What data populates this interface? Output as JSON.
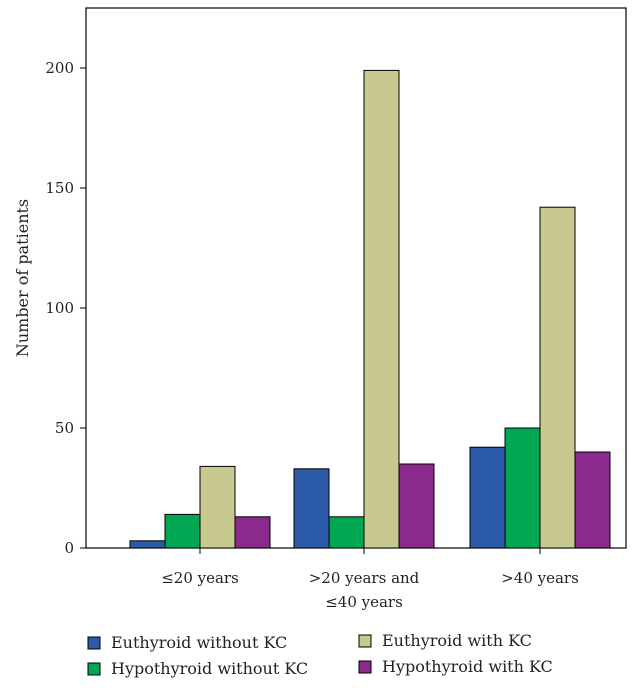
{
  "chart_data": {
    "type": "bar",
    "title": "",
    "xlabel": "",
    "ylabel": "Number of patients",
    "ylim": [
      0,
      225
    ],
    "yticks": [
      0,
      50,
      100,
      150,
      200
    ],
    "grid": false,
    "legend_position": "bottom",
    "categories": [
      [
        "≤20 years"
      ],
      [
        ">20 years and",
        "≤40 years"
      ],
      [
        ">40 years"
      ]
    ],
    "series": [
      {
        "name": "Euthyroid without KC",
        "color": "#2b5ba8",
        "values": [
          3,
          33,
          42
        ]
      },
      {
        "name": "Hypothyroid without KC",
        "color": "#00a651",
        "values": [
          14,
          13,
          50
        ]
      },
      {
        "name": "Euthyroid with KC",
        "color": "#c8c98e",
        "values": [
          34,
          199,
          142
        ]
      },
      {
        "name": "Hypothyroid with KC",
        "color": "#8b2a8d",
        "values": [
          13,
          35,
          40
        ]
      }
    ]
  }
}
